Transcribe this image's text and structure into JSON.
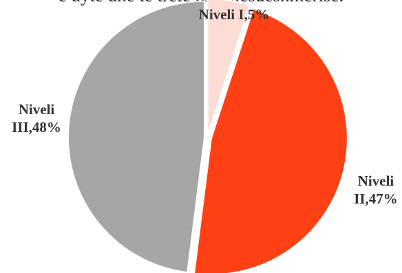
{
  "document": {
    "cropped_text_line": "e dyte dhe te tretë të pabesueshmërisë."
  },
  "chart_data": {
    "type": "pie",
    "title": "",
    "categories": [
      "Niveli I",
      "Niveli II",
      "Niveli III"
    ],
    "values": [
      5,
      47,
      48
    ],
    "value_unit": "%",
    "data_labels": [
      {
        "lines": [
          "Niveli I,5%"
        ]
      },
      {
        "lines": [
          "Niveli",
          "II,47%"
        ]
      },
      {
        "lines": [
          "Niveli",
          "III,48%"
        ]
      }
    ],
    "colors": [
      "#fcdcd4",
      "#fe4114",
      "#a6a6a6"
    ],
    "start_angle": "12 o'clock",
    "direction": "clockwise",
    "exploded": true,
    "legend": "none"
  }
}
